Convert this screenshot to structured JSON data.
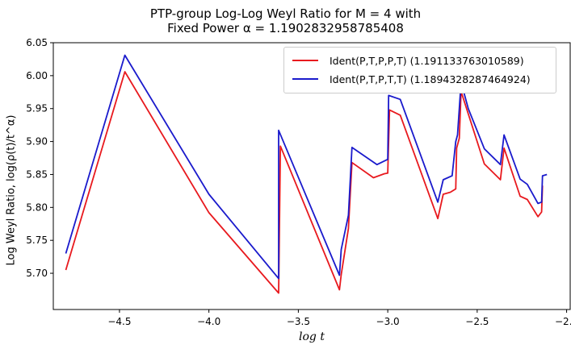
{
  "title_line1": "PTP-group Log-Log Weyl Ratio for M = 4 with",
  "title_line2": "Fixed Power α = 1.1902832958785408",
  "chart_data": {
    "type": "line",
    "xlabel": "log t",
    "ylabel": "Log Weyl Ratio, log(ρ(t)/t^α)",
    "xlim": [
      -4.87,
      -1.98
    ],
    "ylim": [
      5.645,
      6.05
    ],
    "xticks": [
      -4.5,
      -4.0,
      -3.5,
      -3.0,
      -2.5,
      -2.0
    ],
    "xtick_labels": [
      "−4.5",
      "−4.0",
      "−3.5",
      "−3.0",
      "−2.5",
      "−2.0"
    ],
    "yticks": [
      5.7,
      5.75,
      5.8,
      5.85,
      5.9,
      5.95,
      6.0,
      6.05
    ],
    "ytick_labels": [
      "5.70",
      "5.75",
      "5.80",
      "5.85",
      "5.90",
      "5.95",
      "6.00",
      "6.05"
    ],
    "legend_position": "top-right",
    "series": [
      {
        "name": "Ident(P,T,P,P,T) (1.191133763010589)",
        "color": "#e8191e",
        "points": [
          [
            -4.8,
            5.705
          ],
          [
            -4.47,
            6.006
          ],
          [
            -4.0,
            5.792
          ],
          [
            -3.61,
            5.67
          ],
          [
            -3.6,
            5.893
          ],
          [
            -3.27,
            5.675
          ],
          [
            -3.26,
            5.698
          ],
          [
            -3.22,
            5.768
          ],
          [
            -3.2,
            5.868
          ],
          [
            -3.08,
            5.845
          ],
          [
            -3.02,
            5.851
          ],
          [
            -3.0,
            5.852
          ],
          [
            -2.99,
            5.948
          ],
          [
            -2.93,
            5.94
          ],
          [
            -2.72,
            5.783
          ],
          [
            -2.69,
            5.82
          ],
          [
            -2.65,
            5.823
          ],
          [
            -2.62,
            5.828
          ],
          [
            -2.615,
            5.89
          ],
          [
            -2.6,
            5.905
          ],
          [
            -2.59,
            5.976
          ],
          [
            -2.46,
            5.866
          ],
          [
            -2.37,
            5.842
          ],
          [
            -2.35,
            5.89
          ],
          [
            -2.26,
            5.817
          ],
          [
            -2.22,
            5.812
          ],
          [
            -2.16,
            5.786
          ],
          [
            -2.14,
            5.793
          ],
          [
            -2.135,
            5.833
          ]
        ]
      },
      {
        "name": "Ident(P,T,P,T,T) (1.1894328287464924)",
        "color": "#1a1acc",
        "points": [
          [
            -4.8,
            5.73
          ],
          [
            -4.47,
            6.031
          ],
          [
            -4.0,
            5.82
          ],
          [
            -3.61,
            5.692
          ],
          [
            -3.61,
            5.917
          ],
          [
            -3.27,
            5.697
          ],
          [
            -3.26,
            5.736
          ],
          [
            -3.22,
            5.788
          ],
          [
            -3.2,
            5.891
          ],
          [
            -3.06,
            5.865
          ],
          [
            -3.0,
            5.873
          ],
          [
            -2.995,
            5.97
          ],
          [
            -2.93,
            5.964
          ],
          [
            -2.72,
            5.808
          ],
          [
            -2.69,
            5.842
          ],
          [
            -2.64,
            5.848
          ],
          [
            -2.62,
            5.9
          ],
          [
            -2.61,
            5.91
          ],
          [
            -2.59,
            5.99
          ],
          [
            -2.55,
            5.95
          ],
          [
            -2.46,
            5.889
          ],
          [
            -2.37,
            5.865
          ],
          [
            -2.35,
            5.91
          ],
          [
            -2.26,
            5.843
          ],
          [
            -2.22,
            5.835
          ],
          [
            -2.16,
            5.806
          ],
          [
            -2.14,
            5.808
          ],
          [
            -2.135,
            5.848
          ],
          [
            -2.11,
            5.85
          ]
        ]
      }
    ]
  }
}
